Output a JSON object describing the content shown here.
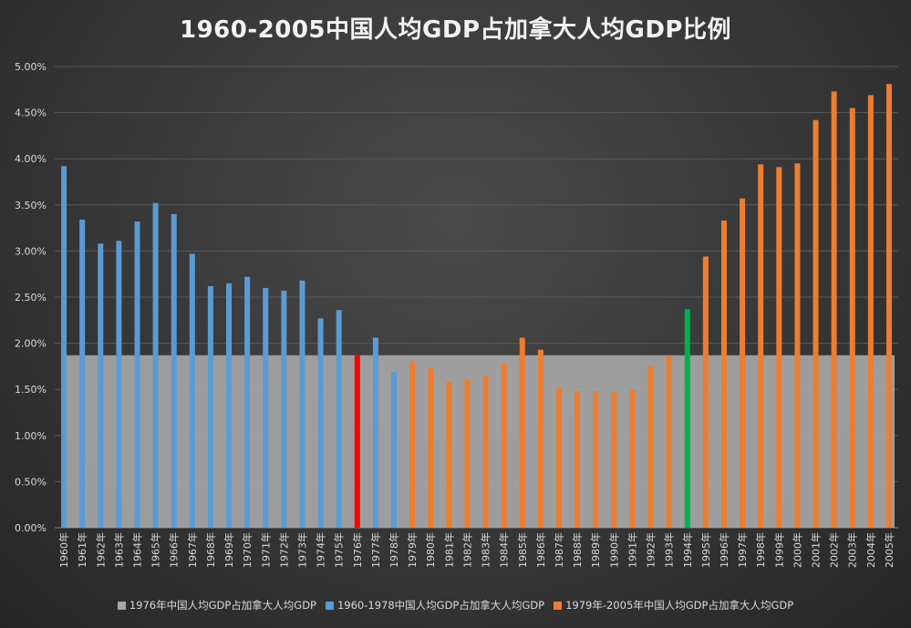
{
  "chart_data": {
    "type": "bar",
    "title": "1960-2005中国人均GDP占加拿大人均GDP比例",
    "ylim": [
      0,
      5.0
    ],
    "yticks": [
      "0.00%",
      "0.50%",
      "1.00%",
      "1.50%",
      "2.00%",
      "2.50%",
      "3.00%",
      "3.50%",
      "4.00%",
      "4.50%",
      "5.00%"
    ],
    "grid": true,
    "legend_position": "bottom",
    "categories": [
      "1960年",
      "1961年",
      "1962年",
      "1963年",
      "1964年",
      "1965年",
      "1966年",
      "1967年",
      "1968年",
      "1969年",
      "1970年",
      "1971年",
      "1972年",
      "1973年",
      "1974年",
      "1975年",
      "1976年",
      "1977年",
      "1978年",
      "1979年",
      "1980年",
      "1981年",
      "1982年",
      "1983年",
      "1984年",
      "1985年",
      "1986年",
      "1987年",
      "1988年",
      "1989年",
      "1990年",
      "1991年",
      "1992年",
      "1993年",
      "1994年",
      "1995年",
      "1996年",
      "1997年",
      "1998年",
      "1999年",
      "2000年",
      "2001年",
      "2002年",
      "2003年",
      "2004年",
      "2005年"
    ],
    "values": [
      3.92,
      3.34,
      3.08,
      3.11,
      3.32,
      3.52,
      3.4,
      2.97,
      2.62,
      2.65,
      2.72,
      2.6,
      2.57,
      2.68,
      2.27,
      2.36,
      1.87,
      2.06,
      1.69,
      1.81,
      1.73,
      1.58,
      1.61,
      1.65,
      1.78,
      2.06,
      1.93,
      1.52,
      1.48,
      1.48,
      1.47,
      1.5,
      1.75,
      1.87,
      2.37,
      2.94,
      3.33,
      3.57,
      3.94,
      3.91,
      3.95,
      4.42,
      4.73,
      4.55,
      4.69,
      4.81
    ],
    "bar_colors": [
      "#5b9bd5",
      "#5b9bd5",
      "#5b9bd5",
      "#5b9bd5",
      "#5b9bd5",
      "#5b9bd5",
      "#5b9bd5",
      "#5b9bd5",
      "#5b9bd5",
      "#5b9bd5",
      "#5b9bd5",
      "#5b9bd5",
      "#5b9bd5",
      "#5b9bd5",
      "#5b9bd5",
      "#5b9bd5",
      "#ff0000",
      "#5b9bd5",
      "#5b9bd5",
      "#ed7d31",
      "#ed7d31",
      "#ed7d31",
      "#ed7d31",
      "#ed7d31",
      "#ed7d31",
      "#ed7d31",
      "#ed7d31",
      "#ed7d31",
      "#ed7d31",
      "#ed7d31",
      "#ed7d31",
      "#ed7d31",
      "#ed7d31",
      "#ed7d31",
      "#00b050",
      "#ed7d31",
      "#ed7d31",
      "#ed7d31",
      "#ed7d31",
      "#ed7d31",
      "#ed7d31",
      "#ed7d31",
      "#ed7d31",
      "#ed7d31",
      "#ed7d31",
      "#ed7d31"
    ],
    "reference_band": {
      "value": 1.87,
      "color": "#a6a6a6"
    },
    "legend": [
      {
        "label": "1976年中国人均GDP占加拿大人均GDP",
        "color": "#a6a6a6"
      },
      {
        "label": "1960-1978中国人均GDP占加拿大人均GDP",
        "color": "#5b9bd5"
      },
      {
        "label": "1979年-2005年中国人均GDP占加拿大人均GDP",
        "color": "#ed7d31"
      }
    ]
  }
}
